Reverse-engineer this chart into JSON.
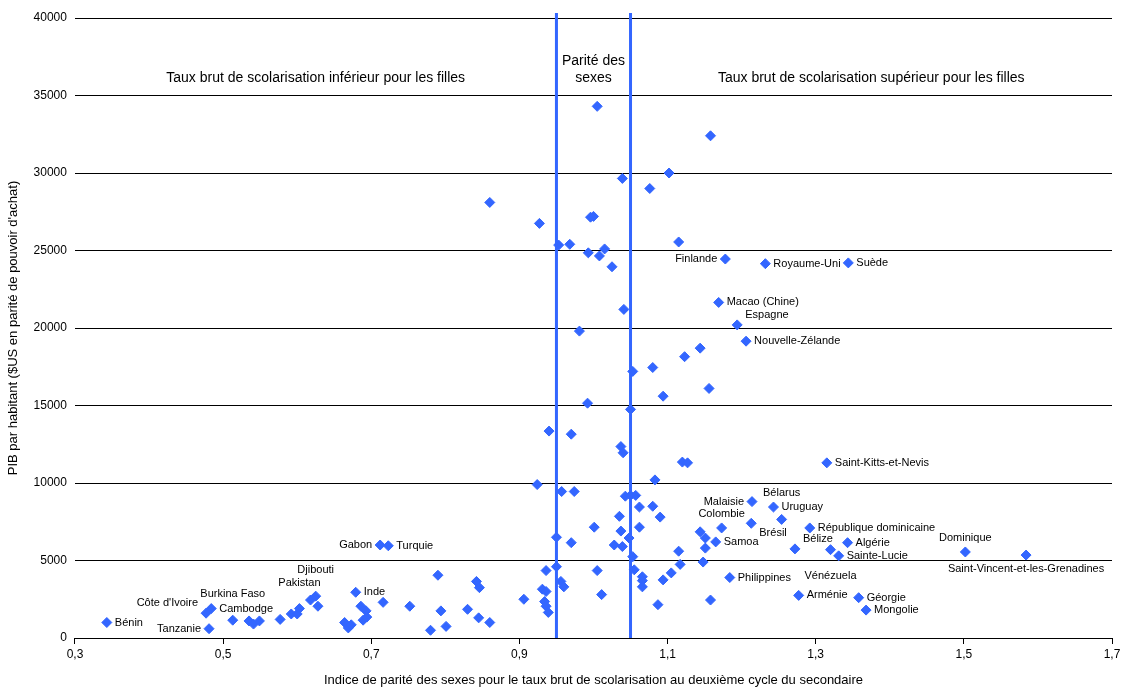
{
  "chart_data": {
    "type": "scatter",
    "xlabel": "Indice de parité des sexes pour le taux brut de scolarisation au deuxième cycle du secondaire",
    "ylabel": "PIB par habitant ($US en parité de pouvoir d'achat)",
    "xlim": [
      0.3,
      1.7
    ],
    "xticks": [
      {
        "value": 0.3,
        "label": "0,3"
      },
      {
        "value": 0.5,
        "label": "0,5"
      },
      {
        "value": 0.7,
        "label": "0,7"
      },
      {
        "value": 0.9,
        "label": "0,9"
      },
      {
        "value": 1.1,
        "label": "1,1"
      },
      {
        "value": 1.3,
        "label": "1,3"
      },
      {
        "value": 1.5,
        "label": "1,5"
      },
      {
        "value": 1.7,
        "label": "1,7"
      }
    ],
    "ylim": [
      0,
      40000
    ],
    "yticks": [
      0,
      5000,
      10000,
      15000,
      20000,
      25000,
      30000,
      35000,
      40000
    ],
    "grid": "y",
    "legend": false,
    "marker": "diamond",
    "ref_lines": [
      {
        "axis": "x",
        "value": 0.95,
        "color": "#3366ff"
      },
      {
        "axis": "x",
        "value": 1.05,
        "color": "#3366ff"
      }
    ],
    "series": [
      {
        "color": "#3366ff",
        "x": [
          0.343,
          0.481,
          0.477,
          0.484,
          0.513,
          0.535,
          0.541,
          0.549,
          0.577,
          0.592,
          0.6,
          0.603,
          0.618,
          0.625,
          0.628,
          0.664,
          0.669,
          0.673,
          0.679,
          0.686,
          0.689,
          0.693,
          0.694,
          0.712,
          0.723,
          0.716,
          0.752,
          0.78,
          0.79,
          0.794,
          0.801,
          0.83,
          0.842,
          0.845,
          0.846,
          0.86,
          0.86,
          0.906,
          0.924,
          0.927,
          0.931,
          0.934,
          0.936,
          0.936,
          0.936,
          0.939,
          0.94,
          0.95,
          0.95,
          0.953,
          0.956,
          0.957,
          0.96,
          0.968,
          0.97,
          0.97,
          0.974,
          0.981,
          0.992,
          0.993,
          0.996,
          1.0,
          1.001,
          1.005,
          1.005,
          1.008,
          1.011,
          1.015,
          1.025,
          1.028,
          1.035,
          1.037,
          1.037,
          1.039,
          1.039,
          1.04,
          1.041,
          1.043,
          1.048,
          1.05,
          1.05,
          1.053,
          1.053,
          1.055,
          1.057,
          1.062,
          1.062,
          1.066,
          1.066,
          1.066,
          1.076,
          1.08,
          1.08,
          1.083,
          1.087,
          1.09,
          1.094,
          1.094,
          1.102,
          1.105,
          1.115,
          1.115,
          1.117,
          1.12,
          1.123,
          1.127,
          1.144,
          1.144,
          1.148,
          1.151,
          1.151,
          1.156,
          1.158,
          1.158,
          1.165,
          1.169,
          1.173,
          1.178,
          1.184,
          1.194,
          1.206,
          1.213,
          1.214,
          1.232,
          1.243,
          1.254,
          1.272,
          1.277,
          1.292,
          1.315,
          1.32,
          1.331,
          1.343,
          1.344,
          1.358,
          1.368,
          1.502,
          1.584
        ],
        "values": [
          1000,
          600,
          1600,
          1900,
          1150,
          1100,
          900,
          1100,
          1200,
          1550,
          1550,
          1900,
          2450,
          2700,
          2050,
          1000,
          650,
          850,
          2950,
          2050,
          1150,
          1750,
          1350,
          6000,
          5950,
          2300,
          2050,
          500,
          4050,
          1750,
          750,
          1850,
          3650,
          1300,
          3250,
          1000,
          28100,
          2500,
          9900,
          26750,
          3150,
          2350,
          3000,
          2050,
          4350,
          1650,
          13350,
          4600,
          6500,
          25350,
          3650,
          9450,
          3300,
          25400,
          13150,
          6150,
          9450,
          19800,
          15150,
          24850,
          27150,
          27200,
          7150,
          34300,
          4350,
          24650,
          2800,
          25100,
          23950,
          6000,
          7850,
          12350,
          6900,
          29650,
          5900,
          11950,
          21200,
          9150,
          6450,
          9200,
          14750,
          17200,
          5250,
          4400,
          9200,
          8450,
          7150,
          3950,
          3700,
          3300,
          29000,
          17450,
          8500,
          10200,
          2150,
          7800,
          15600,
          3750,
          30000,
          4200,
          25550,
          5600,
          4750,
          11350,
          18150,
          11300,
          18700,
          6850,
          4900,
          5800,
          6450,
          16100,
          32400,
          2450,
          6200,
          21650,
          7100,
          24450,
          3900,
          20200,
          19150,
          7400,
          8800,
          24150,
          8450,
          7650,
          5750,
          2750,
          7100,
          11300,
          5700,
          5300,
          6150,
          24200,
          2600,
          1800,
          5550,
          5350
        ]
      }
    ],
    "annotations": [
      "Taux brut de scolarisation inférieur pour les filles",
      "Parité des sexes",
      "Taux brut de scolarisation supérieur pour les filles",
      {
        "text": "Bénin",
        "x": 0.343,
        "y": 1000
      },
      {
        "text": "Tanzanie",
        "x": 0.481,
        "y": 600
      },
      {
        "text": "Côte d'Ivoire",
        "x": 0.477,
        "y": 1600
      },
      {
        "text": "Cambodge",
        "x": 0.484,
        "y": 1900
      },
      {
        "text": "Burkina Faso",
        "x": 0.513,
        "y": 1150
      },
      {
        "text": "Pakistan",
        "x": 0.603,
        "y": 1900
      },
      {
        "text": "Djibouti",
        "x": 0.625,
        "y": 2700
      },
      {
        "text": "Inde",
        "x": 0.679,
        "y": 2950
      },
      {
        "text": "Gabon",
        "x": 0.712,
        "y": 6000
      },
      {
        "text": "Turquie",
        "x": 0.723,
        "y": 5950
      },
      {
        "text": "Samoa",
        "x": 1.165,
        "y": 6200
      },
      {
        "text": "Macao (Chine)",
        "x": 1.169,
        "y": 21650
      },
      {
        "text": "Colombie",
        "x": 1.173,
        "y": 7100
      },
      {
        "text": "Finlande",
        "x": 1.178,
        "y": 24450
      },
      {
        "text": "Philippines",
        "x": 1.184,
        "y": 3900
      },
      {
        "text": "Espagne",
        "x": 1.194,
        "y": 20200
      },
      {
        "text": "Nouvelle-Zélande",
        "x": 1.206,
        "y": 19150
      },
      {
        "text": "Brésil",
        "x": 1.213,
        "y": 7400
      },
      {
        "text": "Malaisie",
        "x": 1.214,
        "y": 8800
      },
      {
        "text": "Royaume-Uni",
        "x": 1.232,
        "y": 24150
      },
      {
        "text": "Uruguay",
        "x": 1.243,
        "y": 8450
      },
      {
        "text": "Bélarus",
        "x": 1.254,
        "y": 7650
      },
      {
        "text": "Bélize",
        "x": 1.272,
        "y": 5750
      },
      {
        "text": "Arménie",
        "x": 1.277,
        "y": 2750
      },
      {
        "text": "République dominicaine",
        "x": 1.292,
        "y": 7100
      },
      {
        "text": "Saint-Kitts-et-Nevis",
        "x": 1.315,
        "y": 11300
      },
      {
        "text": "Vénézuela",
        "x": 1.32,
        "y": 5700
      },
      {
        "text": "Sainte-Lucie",
        "x": 1.331,
        "y": 5300
      },
      {
        "text": "Algérie",
        "x": 1.343,
        "y": 6150
      },
      {
        "text": "Suède",
        "x": 1.344,
        "y": 24200
      },
      {
        "text": "Géorgie",
        "x": 1.358,
        "y": 2600
      },
      {
        "text": "Mongolie",
        "x": 1.368,
        "y": 1800
      },
      {
        "text": "Dominique",
        "x": 1.502,
        "y": 5550
      },
      {
        "text": "Saint-Vincent-et-les-Grenadines",
        "x": 1.584,
        "y": 5350
      }
    ]
  }
}
